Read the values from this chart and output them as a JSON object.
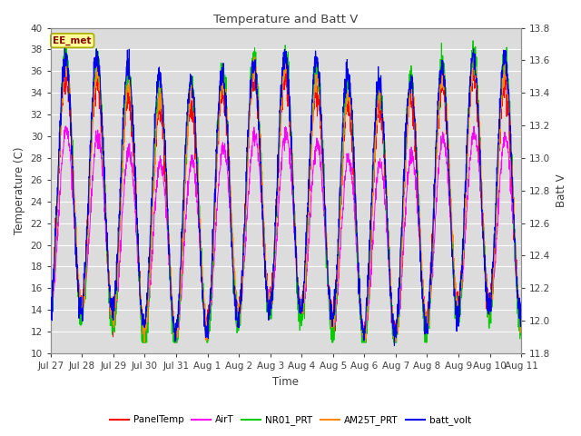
{
  "title": "Temperature and Batt V",
  "xlabel": "Time",
  "ylabel_left": "Temperature (C)",
  "ylabel_right": "Batt V",
  "ylim_left": [
    10,
    40
  ],
  "ylim_right": [
    11.8,
    13.8
  ],
  "station_label": "EE_met",
  "x_tick_labels": [
    "Jul 27",
    "Jul 28",
    "Jul 29",
    "Jul 30",
    "Jul 31",
    "Aug 1",
    "Aug 2",
    "Aug 3",
    "Aug 4",
    "Aug 5",
    "Aug 6",
    "Aug 7",
    "Aug 8",
    "Aug 9",
    "Aug 10",
    "Aug 11"
  ],
  "legend_entries": [
    {
      "label": "PanelTemp",
      "color": "#FF0000"
    },
    {
      "label": "AirT",
      "color": "#FF00FF"
    },
    {
      "label": "NR01_PRT",
      "color": "#00CC00"
    },
    {
      "label": "AM25T_PRT",
      "color": "#FF8800"
    },
    {
      "label": "batt_volt",
      "color": "#0000EE"
    }
  ],
  "background_color": "#FFFFFF",
  "plot_bg_color": "#DCDCDC",
  "grid_color": "#FFFFFF",
  "title_color": "#404040",
  "label_color": "#404040",
  "station_box_facecolor": "#FFFF99",
  "station_box_edgecolor": "#AAAA00",
  "station_text_color": "#880000"
}
